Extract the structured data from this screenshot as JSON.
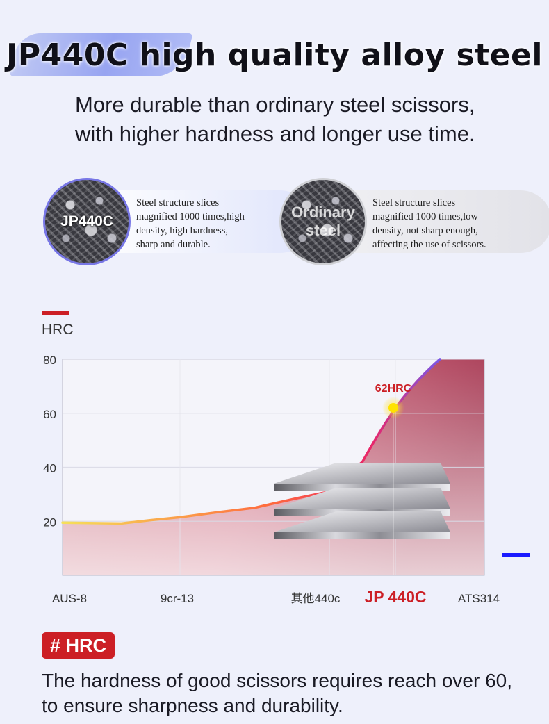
{
  "headline": "JP440C high quality alloy steel",
  "subhead": {
    "line1": "More durable than ordinary steel scissors,",
    "line2": "with higher hardness and longer use time."
  },
  "samples": [
    {
      "label": "JP440C",
      "lines": [
        "Steel structure slices",
        "magnified 1000 times,high",
        "density, high hardness,",
        "sharp and durable."
      ]
    },
    {
      "label_line1": "Ordinary",
      "label_line2": "steel",
      "lines": [
        "Steel structure slices",
        "magnified 1000 times,low",
        "density, not sharp enough,",
        "affecting the use of scissors."
      ]
    }
  ],
  "colors": {
    "accent_red": "#cc1f25",
    "curve_start": "#f6e05a",
    "curve_mid": "#ff6a3d",
    "curve_end": "#7a57e6",
    "marker_blue": "#1a1aff"
  },
  "chart_data": {
    "type": "area",
    "ylabel": "HRC",
    "ylim": [
      0,
      80
    ],
    "yticks": [
      20,
      40,
      60,
      80
    ],
    "categories": [
      "AUS-8",
      "9cr-13",
      "其他440c",
      "JP 440C",
      "ATS314"
    ],
    "highlight_category": "JP 440C",
    "annotation": {
      "label": "62HRC",
      "category": "JP 440C",
      "value": 62
    },
    "curve": [
      {
        "x": 0.0,
        "y": 19.5
      },
      {
        "x": 0.5,
        "y": 19.2
      },
      {
        "x": 1.0,
        "y": 21.5
      },
      {
        "x": 1.5,
        "y": 25
      },
      {
        "x": 2.0,
        "y": 31
      },
      {
        "x": 2.5,
        "y": 42
      },
      {
        "x": 3.0,
        "y": 62
      },
      {
        "x": 3.25,
        "y": 72
      },
      {
        "x": 3.5,
        "y": 80
      }
    ],
    "grid": true,
    "legend": "none"
  },
  "hrc_tag": "# HRC",
  "footer": {
    "line1": "The hardness of good scissors requires reach over 60,",
    "line2": "to ensure sharpness and durability."
  }
}
